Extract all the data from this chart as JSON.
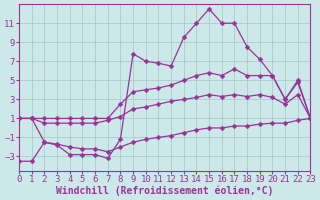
{
  "xlabel": "Windchill (Refroidissement éolien,°C)",
  "xlim": [
    0,
    23
  ],
  "ylim": [
    -4.5,
    13
  ],
  "xticks": [
    0,
    1,
    2,
    3,
    4,
    5,
    6,
    7,
    8,
    9,
    10,
    11,
    12,
    13,
    14,
    15,
    16,
    17,
    18,
    19,
    20,
    21,
    22,
    23
  ],
  "yticks": [
    -3,
    -1,
    1,
    3,
    5,
    7,
    9,
    11
  ],
  "background_color": "#cde8e8",
  "grid_color": "#a8cccc",
  "line_color": "#993399",
  "lines": [
    [
      1,
      1,
      -1.5,
      -1.8,
      -2.8,
      -2.8,
      -2.8,
      -3.2,
      -1.2,
      7.8,
      7.0,
      6.8,
      6.5,
      9.5,
      11.0,
      12.5,
      11.0,
      11.0,
      8.5,
      7.2,
      5.5,
      3.0,
      5.0,
      1.0
    ],
    [
      1,
      1,
      1,
      1,
      1,
      1,
      1,
      1,
      2.5,
      3.8,
      4.0,
      4.2,
      4.5,
      5.0,
      5.5,
      5.8,
      5.5,
      6.2,
      5.5,
      5.5,
      5.5,
      3.0,
      4.8,
      1.0
    ],
    [
      1,
      1,
      0.5,
      0.5,
      0.5,
      0.5,
      0.5,
      0.8,
      1.2,
      2.0,
      2.2,
      2.5,
      2.8,
      3.0,
      3.2,
      3.5,
      3.3,
      3.5,
      3.3,
      3.5,
      3.2,
      2.5,
      3.5,
      1.0
    ],
    [
      -3.5,
      -3.5,
      -1.5,
      -1.7,
      -2.0,
      -2.2,
      -2.2,
      -2.5,
      -2.0,
      -1.5,
      -1.2,
      -1.0,
      -0.8,
      -0.5,
      -0.2,
      0.0,
      0.0,
      0.2,
      0.2,
      0.4,
      0.5,
      0.5,
      0.8,
      1.0
    ]
  ],
  "font_size": 7,
  "tick_font_size": 6.5
}
